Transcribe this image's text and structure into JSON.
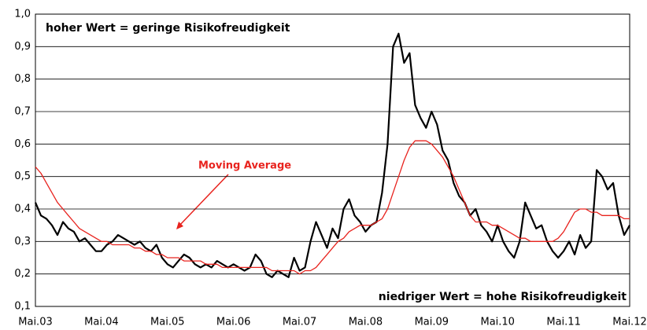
{
  "chart_data": {
    "type": "line",
    "annotations": [
      "hoher Wert = geringe Risikofreudigkeit",
      "niedriger Wert = hohe Risikofreudigkeit",
      "Moving Average"
    ],
    "categories": [
      "Mai.03",
      null,
      null,
      null,
      null,
      null,
      null,
      null,
      null,
      null,
      null,
      null,
      "Mai.04",
      null,
      null,
      null,
      null,
      null,
      null,
      null,
      null,
      null,
      null,
      null,
      "Mai.05",
      null,
      null,
      null,
      null,
      null,
      null,
      null,
      null,
      null,
      null,
      null,
      "Mai.06",
      null,
      null,
      null,
      null,
      null,
      null,
      null,
      null,
      null,
      null,
      null,
      "Mai.07",
      null,
      null,
      null,
      null,
      null,
      null,
      null,
      null,
      null,
      null,
      null,
      "Mai.08",
      null,
      null,
      null,
      null,
      null,
      null,
      null,
      null,
      null,
      null,
      null,
      "Mai.09",
      null,
      null,
      null,
      null,
      null,
      null,
      null,
      null,
      null,
      null,
      null,
      "Mai.10",
      null,
      null,
      null,
      null,
      null,
      null,
      null,
      null,
      null,
      null,
      null,
      "Mai.11",
      null,
      null,
      null,
      null,
      null,
      null,
      null,
      null,
      null,
      null,
      null,
      "Mai.12"
    ],
    "series": [
      {
        "color": "#000000",
        "values": [
          0.42,
          0.38,
          0.37,
          0.35,
          0.32,
          0.36,
          0.34,
          0.33,
          0.3,
          0.31,
          0.29,
          0.27,
          0.27,
          0.29,
          0.3,
          0.32,
          0.31,
          0.3,
          0.29,
          0.3,
          0.28,
          0.27,
          0.29,
          0.25,
          0.23,
          0.22,
          0.24,
          0.26,
          0.25,
          0.23,
          0.22,
          0.23,
          0.22,
          0.24,
          0.23,
          0.22,
          0.23,
          0.22,
          0.21,
          0.22,
          0.26,
          0.24,
          0.2,
          0.19,
          0.21,
          0.2,
          0.19,
          0.25,
          0.21,
          0.22,
          0.3,
          0.36,
          0.32,
          0.28,
          0.34,
          0.31,
          0.4,
          0.43,
          0.38,
          0.36,
          0.33,
          0.35,
          0.36,
          0.45,
          0.6,
          0.9,
          0.94,
          0.85,
          0.88,
          0.72,
          0.68,
          0.65,
          0.7,
          0.66,
          0.58,
          0.55,
          0.48,
          0.44,
          0.42,
          0.38,
          0.4,
          0.35,
          0.33,
          0.3,
          0.35,
          0.3,
          0.27,
          0.25,
          0.3,
          0.42,
          0.38,
          0.34,
          0.35,
          0.3,
          0.27,
          0.25,
          0.27,
          0.3,
          0.26,
          0.32,
          0.28,
          0.3,
          0.52,
          0.5,
          0.46,
          0.48,
          0.38,
          0.32,
          0.35
        ]
      },
      {
        "color": "#e8231e",
        "values": [
          0.53,
          0.51,
          0.48,
          0.45,
          0.42,
          0.4,
          0.38,
          0.36,
          0.34,
          0.33,
          0.32,
          0.31,
          0.3,
          0.3,
          0.29,
          0.29,
          0.29,
          0.29,
          0.28,
          0.28,
          0.27,
          0.27,
          0.26,
          0.26,
          0.25,
          0.25,
          0.25,
          0.24,
          0.24,
          0.24,
          0.24,
          0.23,
          0.23,
          0.23,
          0.22,
          0.22,
          0.22,
          0.22,
          0.22,
          0.22,
          0.22,
          0.22,
          0.22,
          0.21,
          0.21,
          0.21,
          0.21,
          0.21,
          0.2,
          0.21,
          0.21,
          0.22,
          0.24,
          0.26,
          0.28,
          0.3,
          0.31,
          0.33,
          0.34,
          0.35,
          0.35,
          0.35,
          0.36,
          0.37,
          0.4,
          0.45,
          0.5,
          0.55,
          0.59,
          0.61,
          0.61,
          0.61,
          0.6,
          0.58,
          0.56,
          0.53,
          0.5,
          0.46,
          0.42,
          0.38,
          0.36,
          0.36,
          0.36,
          0.35,
          0.35,
          0.34,
          0.33,
          0.32,
          0.31,
          0.31,
          0.3,
          0.3,
          0.3,
          0.3,
          0.3,
          0.31,
          0.33,
          0.36,
          0.39,
          0.4,
          0.4,
          0.39,
          0.39,
          0.38,
          0.38,
          0.38,
          0.38,
          0.37,
          0.37
        ]
      }
    ],
    "ylim": [
      0.1,
      1.0
    ],
    "yticks": [
      {
        "value": 0.1,
        "label": "0,1"
      },
      {
        "value": 0.2,
        "label": "0,2"
      },
      {
        "value": 0.3,
        "label": "0,3"
      },
      {
        "value": 0.4,
        "label": "0,4"
      },
      {
        "value": 0.5,
        "label": "0,5"
      },
      {
        "value": 0.6,
        "label": "0,6"
      },
      {
        "value": 0.7,
        "label": "0,7"
      },
      {
        "value": 0.8,
        "label": "0,8"
      },
      {
        "value": 0.9,
        "label": "0,9"
      },
      {
        "value": 1.0,
        "label": "1,0"
      }
    ],
    "grid": true
  }
}
